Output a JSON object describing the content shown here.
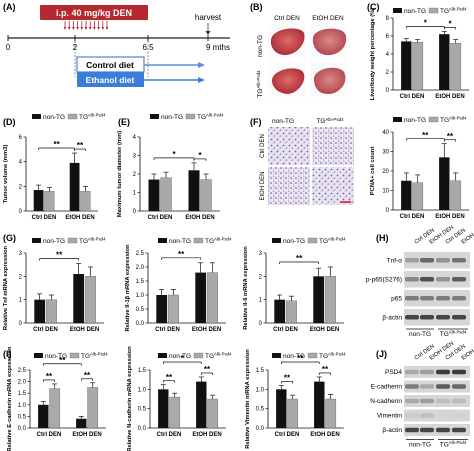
{
  "figure": {
    "panel_labels": [
      "(A)",
      "(B)",
      "(C)",
      "(D)",
      "(E)",
      "(F)",
      "(G)",
      "(H)",
      "(I)",
      "(J)"
    ],
    "timeline": {
      "treatment_label": "i.p. 40 mg/kg DEN",
      "harvest_label": "harvest",
      "ticks": [
        "0",
        "2",
        "6.5",
        "9 mths"
      ],
      "control_label": "Control diet",
      "ethanol_label": "Ethanol diet",
      "colors": {
        "treatment": "#b5282e",
        "control": "#5b8fd9",
        "ethanol": "#3c7ddc"
      }
    },
    "photos": {
      "col_labels": [
        "Ctrl DEN",
        "EtOH DEN"
      ],
      "row_labels": [
        "non-TG",
        "TG"
      ],
      "row_sup": "Alb-Psd4"
    },
    "histology": {
      "col_labels": [
        "non-TG",
        "TG"
      ],
      "col_sup": "Alb-Psd4",
      "row_labels": [
        "Ctrl DEN",
        "EtOH DEN"
      ]
    },
    "legend": {
      "nontg": "non-TG",
      "tg": "TG",
      "tg_sup": "Alb-Psd4"
    },
    "colors": {
      "nontg": "#111111",
      "tg": "#a9a9a9",
      "error": "#111111"
    },
    "blots": {
      "H": {
        "lanes": [
          "Ctrl DEN",
          "EtOH DEN",
          "Ctrl DEN",
          "EtOH DEN"
        ],
        "rows": [
          "Tnf-α",
          "p-p65(S276)",
          "p65",
          "β-actin"
        ],
        "groups": [
          "non-TG",
          "TG"
        ],
        "group_sup": "Alb-Psd4"
      },
      "J": {
        "lanes": [
          "Ctrl DEN",
          "EtOH DEN",
          "Ctrl DEN",
          "EtOH DEN"
        ],
        "rows": [
          "PSD4",
          "E-cadherin",
          "N-cadherin",
          "Vimentin",
          "β-actin"
        ],
        "groups": [
          "non-TG",
          "TG"
        ],
        "group_sup": "Alb-Psd4"
      }
    }
  },
  "chart_data": [
    {
      "id": "C",
      "type": "bar",
      "ylabel": "Liver/body weight percentage (%)",
      "ylim": [
        0,
        8
      ],
      "yticks": [
        0,
        2,
        4,
        6,
        8
      ],
      "categories": [
        "Ctrl DEN",
        "EtOH DEN"
      ],
      "series": [
        {
          "name": "non-TG",
          "values": [
            5.4,
            6.2
          ],
          "errors": [
            0.3,
            0.3
          ]
        },
        {
          "name": "TG",
          "values": [
            5.3,
            5.2
          ],
          "errors": [
            0.3,
            0.4
          ]
        }
      ],
      "annotations": [
        "*",
        "*"
      ]
    },
    {
      "id": "D",
      "type": "bar",
      "ylabel": "Tumor volume (mm3)",
      "ylim": [
        0,
        6
      ],
      "yticks": [
        0,
        2,
        4,
        6
      ],
      "categories": [
        "Ctrl DEN",
        "EtOH DEN"
      ],
      "series": [
        {
          "name": "non-TG",
          "values": [
            1.7,
            3.9
          ],
          "errors": [
            0.4,
            0.8
          ]
        },
        {
          "name": "TG",
          "values": [
            1.6,
            1.6
          ],
          "errors": [
            0.3,
            0.4
          ]
        }
      ],
      "annotations": [
        "**",
        "**"
      ]
    },
    {
      "id": "E",
      "type": "bar",
      "ylabel": "Maximum tumor diameter (mm)",
      "ylim": [
        0,
        4
      ],
      "yticks": [
        0,
        1,
        2,
        3,
        4
      ],
      "categories": [
        "Ctrl DEN",
        "EtOH DEN"
      ],
      "series": [
        {
          "name": "non-TG",
          "values": [
            1.7,
            2.2
          ],
          "errors": [
            0.3,
            0.4
          ]
        },
        {
          "name": "TG",
          "values": [
            1.8,
            1.7
          ],
          "errors": [
            0.3,
            0.3
          ]
        }
      ],
      "annotations": [
        "*",
        "*"
      ]
    },
    {
      "id": "F",
      "type": "bar",
      "ylabel": "PCNA+ cell count",
      "ylim": [
        0,
        40
      ],
      "yticks": [
        0,
        10,
        20,
        30,
        40
      ],
      "categories": [
        "Ctrl DEN",
        "EtOH DEN"
      ],
      "series": [
        {
          "name": "non-TG",
          "values": [
            15,
            27
          ],
          "errors": [
            4,
            7
          ]
        },
        {
          "name": "TG",
          "values": [
            14,
            15
          ],
          "errors": [
            4,
            4
          ]
        }
      ],
      "annotations": [
        "**",
        "**"
      ]
    },
    {
      "id": "G1",
      "type": "bar",
      "ylabel": "Relative Tnf mRNA expression",
      "ylim": [
        0,
        3
      ],
      "yticks": [
        0,
        1,
        2,
        3
      ],
      "categories": [
        "Ctrl DEN",
        "EtOH DEN"
      ],
      "series": [
        {
          "name": "non-TG",
          "values": [
            1.0,
            2.1
          ],
          "errors": [
            0.25,
            0.45
          ]
        },
        {
          "name": "TG",
          "values": [
            1.0,
            2.0
          ],
          "errors": [
            0.2,
            0.4
          ]
        }
      ],
      "annotations": [
        "**"
      ]
    },
    {
      "id": "G2",
      "type": "bar",
      "ylabel": "Relative Il-1β mRNA expression",
      "ylim": [
        0,
        2.5
      ],
      "yticks": [
        0,
        0.5,
        1.0,
        1.5,
        2.0,
        2.5
      ],
      "categories": [
        "Ctrl DEN",
        "EtOH DEN"
      ],
      "series": [
        {
          "name": "non-TG",
          "values": [
            1.0,
            1.8
          ],
          "errors": [
            0.2,
            0.35
          ]
        },
        {
          "name": "TG",
          "values": [
            1.0,
            1.8
          ],
          "errors": [
            0.2,
            0.35
          ]
        }
      ],
      "annotations": [
        "**"
      ]
    },
    {
      "id": "G3",
      "type": "bar",
      "ylabel": "Relative Il-6 mRNA expression",
      "ylim": [
        0,
        3
      ],
      "yticks": [
        0,
        1,
        2,
        3
      ],
      "categories": [
        "Ctrl DEN",
        "EtOH DEN"
      ],
      "series": [
        {
          "name": "non-TG",
          "values": [
            1.0,
            2.0
          ],
          "errors": [
            0.2,
            0.35
          ]
        },
        {
          "name": "TG",
          "values": [
            0.95,
            2.0
          ],
          "errors": [
            0.2,
            0.4
          ]
        }
      ],
      "annotations": [
        "**"
      ]
    },
    {
      "id": "I1",
      "type": "bar",
      "ylabel": "Relative E-cadherin mRNA expression",
      "ylim": [
        0,
        2.5
      ],
      "yticks": [
        0,
        0.5,
        1.0,
        1.5,
        2.0,
        2.5
      ],
      "categories": [
        "Ctrl DEN",
        "EtOH DEN"
      ],
      "series": [
        {
          "name": "non-TG",
          "values": [
            1.0,
            0.4
          ],
          "errors": [
            0.15,
            0.1
          ]
        },
        {
          "name": "TG",
          "values": [
            1.7,
            1.75
          ],
          "errors": [
            0.2,
            0.2
          ]
        }
      ],
      "annotations": [
        "**",
        "**",
        "**"
      ]
    },
    {
      "id": "I2",
      "type": "bar",
      "ylabel": "Relative N-cadherin mRNA expression",
      "ylim": [
        0,
        1.5
      ],
      "yticks": [
        0,
        0.5,
        1.0,
        1.5
      ],
      "categories": [
        "Ctrl DEN",
        "EtOH DEN"
      ],
      "series": [
        {
          "name": "non-TG",
          "values": [
            1.0,
            1.2
          ],
          "errors": [
            0.12,
            0.12
          ]
        },
        {
          "name": "TG",
          "values": [
            0.8,
            0.75
          ],
          "errors": [
            0.1,
            0.1
          ]
        }
      ],
      "annotations": [
        "**",
        "*",
        "**"
      ]
    },
    {
      "id": "I3",
      "type": "bar",
      "ylabel": "Relative Vimentin mRNA expression",
      "ylim": [
        0,
        1.5
      ],
      "yticks": [
        0,
        0.5,
        1.0,
        1.5
      ],
      "categories": [
        "Ctrl DEN",
        "EtOH DEN"
      ],
      "series": [
        {
          "name": "non-TG",
          "values": [
            1.0,
            1.2
          ],
          "errors": [
            0.1,
            0.12
          ]
        },
        {
          "name": "TG",
          "values": [
            0.75,
            0.75
          ],
          "errors": [
            0.1,
            0.12
          ]
        }
      ],
      "annotations": [
        "**",
        "**",
        "**"
      ]
    }
  ]
}
